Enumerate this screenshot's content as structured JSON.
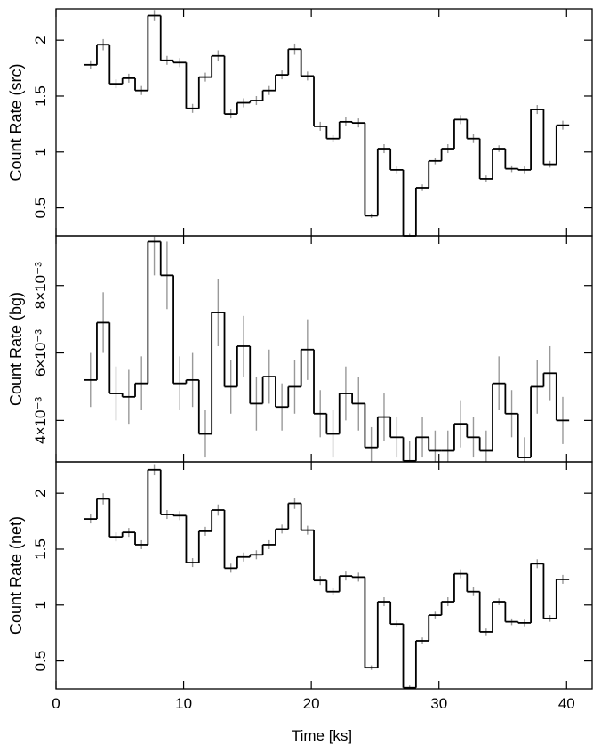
{
  "chart_data": [
    {
      "type": "line",
      "subtype": "step-histogram-with-errorbars",
      "ylabel": "Count Rate (src)",
      "xlim": [
        0,
        42
      ],
      "ylim": [
        0.25,
        2.28
      ],
      "yticks": [
        0.5,
        1,
        1.5,
        2
      ],
      "ytick_labels": [
        "0.5",
        "1",
        "1.5",
        "2"
      ],
      "bins": [
        {
          "x": [
            2.2,
            3.2
          ],
          "y": 1.78,
          "err": 0.04
        },
        {
          "x": [
            3.2,
            4.2
          ],
          "y": 1.96,
          "err": 0.05
        },
        {
          "x": [
            4.2,
            5.2
          ],
          "y": 1.61,
          "err": 0.04
        },
        {
          "x": [
            5.2,
            6.2
          ],
          "y": 1.66,
          "err": 0.04
        },
        {
          "x": [
            6.2,
            7.2
          ],
          "y": 1.55,
          "err": 0.04
        },
        {
          "x": [
            7.2,
            8.2
          ],
          "y": 2.22,
          "err": 0.05
        },
        {
          "x": [
            8.2,
            9.2
          ],
          "y": 1.82,
          "err": 0.04
        },
        {
          "x": [
            9.2,
            10.2
          ],
          "y": 1.8,
          "err": 0.04
        },
        {
          "x": [
            10.2,
            11.2
          ],
          "y": 1.39,
          "err": 0.04
        },
        {
          "x": [
            11.2,
            12.2
          ],
          "y": 1.67,
          "err": 0.04
        },
        {
          "x": [
            12.2,
            13.2
          ],
          "y": 1.86,
          "err": 0.05
        },
        {
          "x": [
            13.2,
            14.2
          ],
          "y": 1.34,
          "err": 0.04
        },
        {
          "x": [
            14.2,
            15.2
          ],
          "y": 1.44,
          "err": 0.04
        },
        {
          "x": [
            15.2,
            16.2
          ],
          "y": 1.46,
          "err": 0.04
        },
        {
          "x": [
            16.2,
            17.2
          ],
          "y": 1.55,
          "err": 0.04
        },
        {
          "x": [
            17.2,
            18.2
          ],
          "y": 1.69,
          "err": 0.04
        },
        {
          "x": [
            18.2,
            19.2
          ],
          "y": 1.92,
          "err": 0.05
        },
        {
          "x": [
            19.2,
            20.2
          ],
          "y": 1.68,
          "err": 0.04
        },
        {
          "x": [
            20.2,
            21.2
          ],
          "y": 1.23,
          "err": 0.04
        },
        {
          "x": [
            21.2,
            22.2
          ],
          "y": 1.12,
          "err": 0.03
        },
        {
          "x": [
            22.2,
            23.2
          ],
          "y": 1.27,
          "err": 0.04
        },
        {
          "x": [
            23.2,
            24.2
          ],
          "y": 1.26,
          "err": 0.04
        },
        {
          "x": [
            24.2,
            25.2
          ],
          "y": 0.43,
          "err": 0.02
        },
        {
          "x": [
            25.2,
            26.2
          ],
          "y": 1.03,
          "err": 0.04
        },
        {
          "x": [
            26.2,
            27.2
          ],
          "y": 0.84,
          "err": 0.03
        },
        {
          "x": [
            27.2,
            28.2
          ],
          "y": 0.25,
          "err": 0.02
        },
        {
          "x": [
            28.2,
            29.2
          ],
          "y": 0.68,
          "err": 0.03
        },
        {
          "x": [
            29.2,
            30.2
          ],
          "y": 0.92,
          "err": 0.03
        },
        {
          "x": [
            30.2,
            31.2
          ],
          "y": 1.03,
          "err": 0.04
        },
        {
          "x": [
            31.2,
            32.2
          ],
          "y": 1.29,
          "err": 0.04
        },
        {
          "x": [
            32.2,
            33.2
          ],
          "y": 1.12,
          "err": 0.04
        },
        {
          "x": [
            33.2,
            34.2
          ],
          "y": 0.76,
          "err": 0.03
        },
        {
          "x": [
            34.2,
            35.2
          ],
          "y": 1.03,
          "err": 0.03
        },
        {
          "x": [
            35.2,
            36.2
          ],
          "y": 0.85,
          "err": 0.03
        },
        {
          "x": [
            36.2,
            37.2
          ],
          "y": 0.84,
          "err": 0.03
        },
        {
          "x": [
            37.2,
            38.2
          ],
          "y": 1.38,
          "err": 0.04
        },
        {
          "x": [
            38.2,
            39.2
          ],
          "y": 0.89,
          "err": 0.03
        },
        {
          "x": [
            39.2,
            40.2
          ],
          "y": 1.24,
          "err": 0.04
        }
      ]
    },
    {
      "type": "line",
      "subtype": "step-histogram-with-errorbars",
      "ylabel": "Count Rate (bg)",
      "xlim": [
        0,
        42
      ],
      "ylim": [
        0.00277,
        0.00947
      ],
      "yticks": [
        0.004,
        0.006,
        0.008
      ],
      "ytick_labels": [
        "4×10⁻³",
        "6×10⁻³",
        "8×10⁻³"
      ],
      "bins": [
        {
          "x": [
            2.2,
            3.2
          ],
          "y": 0.0052,
          "err": 0.0008
        },
        {
          "x": [
            3.2,
            4.2
          ],
          "y": 0.0069,
          "err": 0.0009
        },
        {
          "x": [
            4.2,
            5.2
          ],
          "y": 0.0048,
          "err": 0.0008
        },
        {
          "x": [
            5.2,
            6.2
          ],
          "y": 0.0047,
          "err": 0.0008
        },
        {
          "x": [
            6.2,
            7.2
          ],
          "y": 0.0051,
          "err": 0.0008
        },
        {
          "x": [
            7.2,
            8.2
          ],
          "y": 0.0093,
          "err": 0.001
        },
        {
          "x": [
            8.2,
            9.2
          ],
          "y": 0.0083,
          "err": 0.001
        },
        {
          "x": [
            9.2,
            10.2
          ],
          "y": 0.0051,
          "err": 0.0008
        },
        {
          "x": [
            10.2,
            11.2
          ],
          "y": 0.0052,
          "err": 0.0008
        },
        {
          "x": [
            11.2,
            12.2
          ],
          "y": 0.0036,
          "err": 0.0007
        },
        {
          "x": [
            12.2,
            13.2
          ],
          "y": 0.0072,
          "err": 0.001
        },
        {
          "x": [
            13.2,
            14.2
          ],
          "y": 0.005,
          "err": 0.0008
        },
        {
          "x": [
            14.2,
            15.2
          ],
          "y": 0.0062,
          "err": 0.0009
        },
        {
          "x": [
            15.2,
            16.2
          ],
          "y": 0.0045,
          "err": 0.0008
        },
        {
          "x": [
            16.2,
            17.2
          ],
          "y": 0.0053,
          "err": 0.0008
        },
        {
          "x": [
            17.2,
            18.2
          ],
          "y": 0.0044,
          "err": 0.0007
        },
        {
          "x": [
            18.2,
            19.2
          ],
          "y": 0.005,
          "err": 0.0008
        },
        {
          "x": [
            19.2,
            20.2
          ],
          "y": 0.0061,
          "err": 0.0009
        },
        {
          "x": [
            20.2,
            21.2
          ],
          "y": 0.0042,
          "err": 0.0007
        },
        {
          "x": [
            21.2,
            22.2
          ],
          "y": 0.0036,
          "err": 0.0007
        },
        {
          "x": [
            22.2,
            23.2
          ],
          "y": 0.0048,
          "err": 0.0008
        },
        {
          "x": [
            23.2,
            24.2
          ],
          "y": 0.0045,
          "err": 0.0008
        },
        {
          "x": [
            24.2,
            25.2
          ],
          "y": 0.0032,
          "err": 0.0006
        },
        {
          "x": [
            25.2,
            26.2
          ],
          "y": 0.0041,
          "err": 0.0007
        },
        {
          "x": [
            26.2,
            27.2
          ],
          "y": 0.0035,
          "err": 0.0006
        },
        {
          "x": [
            27.2,
            28.2
          ],
          "y": 0.0028,
          "err": 0.0006
        },
        {
          "x": [
            28.2,
            29.2
          ],
          "y": 0.0035,
          "err": 0.0006
        },
        {
          "x": [
            29.2,
            30.2
          ],
          "y": 0.0031,
          "err": 0.0006
        },
        {
          "x": [
            30.2,
            31.2
          ],
          "y": 0.0031,
          "err": 0.0006
        },
        {
          "x": [
            31.2,
            32.2
          ],
          "y": 0.0039,
          "err": 0.0007
        },
        {
          "x": [
            32.2,
            33.2
          ],
          "y": 0.0035,
          "err": 0.0006
        },
        {
          "x": [
            33.2,
            34.2
          ],
          "y": 0.0031,
          "err": 0.0006
        },
        {
          "x": [
            34.2,
            35.2
          ],
          "y": 0.0051,
          "err": 0.0008
        },
        {
          "x": [
            35.2,
            36.2
          ],
          "y": 0.0042,
          "err": 0.0007
        },
        {
          "x": [
            36.2,
            37.2
          ],
          "y": 0.0029,
          "err": 0.0006
        },
        {
          "x": [
            37.2,
            38.2
          ],
          "y": 0.005,
          "err": 0.0008
        },
        {
          "x": [
            38.2,
            39.2
          ],
          "y": 0.0054,
          "err": 0.0008
        },
        {
          "x": [
            39.2,
            40.2
          ],
          "y": 0.004,
          "err": 0.0007
        }
      ]
    },
    {
      "type": "line",
      "subtype": "step-histogram-with-errorbars",
      "ylabel": "Count Rate (net)",
      "xlabel": "Time [ks]",
      "xlim": [
        0,
        42
      ],
      "xticks": [
        0,
        10,
        20,
        30,
        40
      ],
      "xtick_labels": [
        "0",
        "10",
        "20",
        "30",
        "40"
      ],
      "ylim": [
        0.25,
        2.28
      ],
      "yticks": [
        0.5,
        1,
        1.5,
        2
      ],
      "ytick_labels": [
        "0.5",
        "1",
        "1.5",
        "2"
      ],
      "bins": [
        {
          "x": [
            2.2,
            3.2
          ],
          "y": 1.77,
          "err": 0.04
        },
        {
          "x": [
            3.2,
            4.2
          ],
          "y": 1.95,
          "err": 0.05
        },
        {
          "x": [
            4.2,
            5.2
          ],
          "y": 1.61,
          "err": 0.04
        },
        {
          "x": [
            5.2,
            6.2
          ],
          "y": 1.65,
          "err": 0.04
        },
        {
          "x": [
            6.2,
            7.2
          ],
          "y": 1.54,
          "err": 0.04
        },
        {
          "x": [
            7.2,
            8.2
          ],
          "y": 2.21,
          "err": 0.05
        },
        {
          "x": [
            8.2,
            9.2
          ],
          "y": 1.81,
          "err": 0.04
        },
        {
          "x": [
            9.2,
            10.2
          ],
          "y": 1.8,
          "err": 0.04
        },
        {
          "x": [
            10.2,
            11.2
          ],
          "y": 1.38,
          "err": 0.04
        },
        {
          "x": [
            11.2,
            12.2
          ],
          "y": 1.66,
          "err": 0.04
        },
        {
          "x": [
            12.2,
            13.2
          ],
          "y": 1.85,
          "err": 0.05
        },
        {
          "x": [
            13.2,
            14.2
          ],
          "y": 1.33,
          "err": 0.04
        },
        {
          "x": [
            14.2,
            15.2
          ],
          "y": 1.43,
          "err": 0.04
        },
        {
          "x": [
            15.2,
            16.2
          ],
          "y": 1.45,
          "err": 0.04
        },
        {
          "x": [
            16.2,
            17.2
          ],
          "y": 1.54,
          "err": 0.04
        },
        {
          "x": [
            17.2,
            18.2
          ],
          "y": 1.68,
          "err": 0.04
        },
        {
          "x": [
            18.2,
            19.2
          ],
          "y": 1.91,
          "err": 0.05
        },
        {
          "x": [
            19.2,
            20.2
          ],
          "y": 1.67,
          "err": 0.04
        },
        {
          "x": [
            20.2,
            21.2
          ],
          "y": 1.22,
          "err": 0.04
        },
        {
          "x": [
            21.2,
            22.2
          ],
          "y": 1.12,
          "err": 0.03
        },
        {
          "x": [
            22.2,
            23.2
          ],
          "y": 1.26,
          "err": 0.04
        },
        {
          "x": [
            23.2,
            24.2
          ],
          "y": 1.25,
          "err": 0.04
        },
        {
          "x": [
            24.2,
            25.2
          ],
          "y": 0.44,
          "err": 0.02
        },
        {
          "x": [
            25.2,
            26.2
          ],
          "y": 1.03,
          "err": 0.04
        },
        {
          "x": [
            26.2,
            27.2
          ],
          "y": 0.83,
          "err": 0.03
        },
        {
          "x": [
            27.2,
            28.2
          ],
          "y": 0.26,
          "err": 0.02
        },
        {
          "x": [
            28.2,
            29.2
          ],
          "y": 0.68,
          "err": 0.03
        },
        {
          "x": [
            29.2,
            30.2
          ],
          "y": 0.91,
          "err": 0.03
        },
        {
          "x": [
            30.2,
            31.2
          ],
          "y": 1.03,
          "err": 0.04
        },
        {
          "x": [
            31.2,
            32.2
          ],
          "y": 1.28,
          "err": 0.04
        },
        {
          "x": [
            32.2,
            33.2
          ],
          "y": 1.12,
          "err": 0.04
        },
        {
          "x": [
            33.2,
            34.2
          ],
          "y": 0.76,
          "err": 0.03
        },
        {
          "x": [
            34.2,
            35.2
          ],
          "y": 1.03,
          "err": 0.03
        },
        {
          "x": [
            35.2,
            36.2
          ],
          "y": 0.85,
          "err": 0.03
        },
        {
          "x": [
            36.2,
            37.2
          ],
          "y": 0.84,
          "err": 0.03
        },
        {
          "x": [
            37.2,
            38.2
          ],
          "y": 1.37,
          "err": 0.04
        },
        {
          "x": [
            38.2,
            39.2
          ],
          "y": 0.88,
          "err": 0.03
        },
        {
          "x": [
            39.2,
            40.2
          ],
          "y": 1.23,
          "err": 0.04
        }
      ]
    }
  ],
  "style": {
    "step_color": "#000000",
    "errorbar_color": "#999999",
    "frame_color": "#000000"
  }
}
